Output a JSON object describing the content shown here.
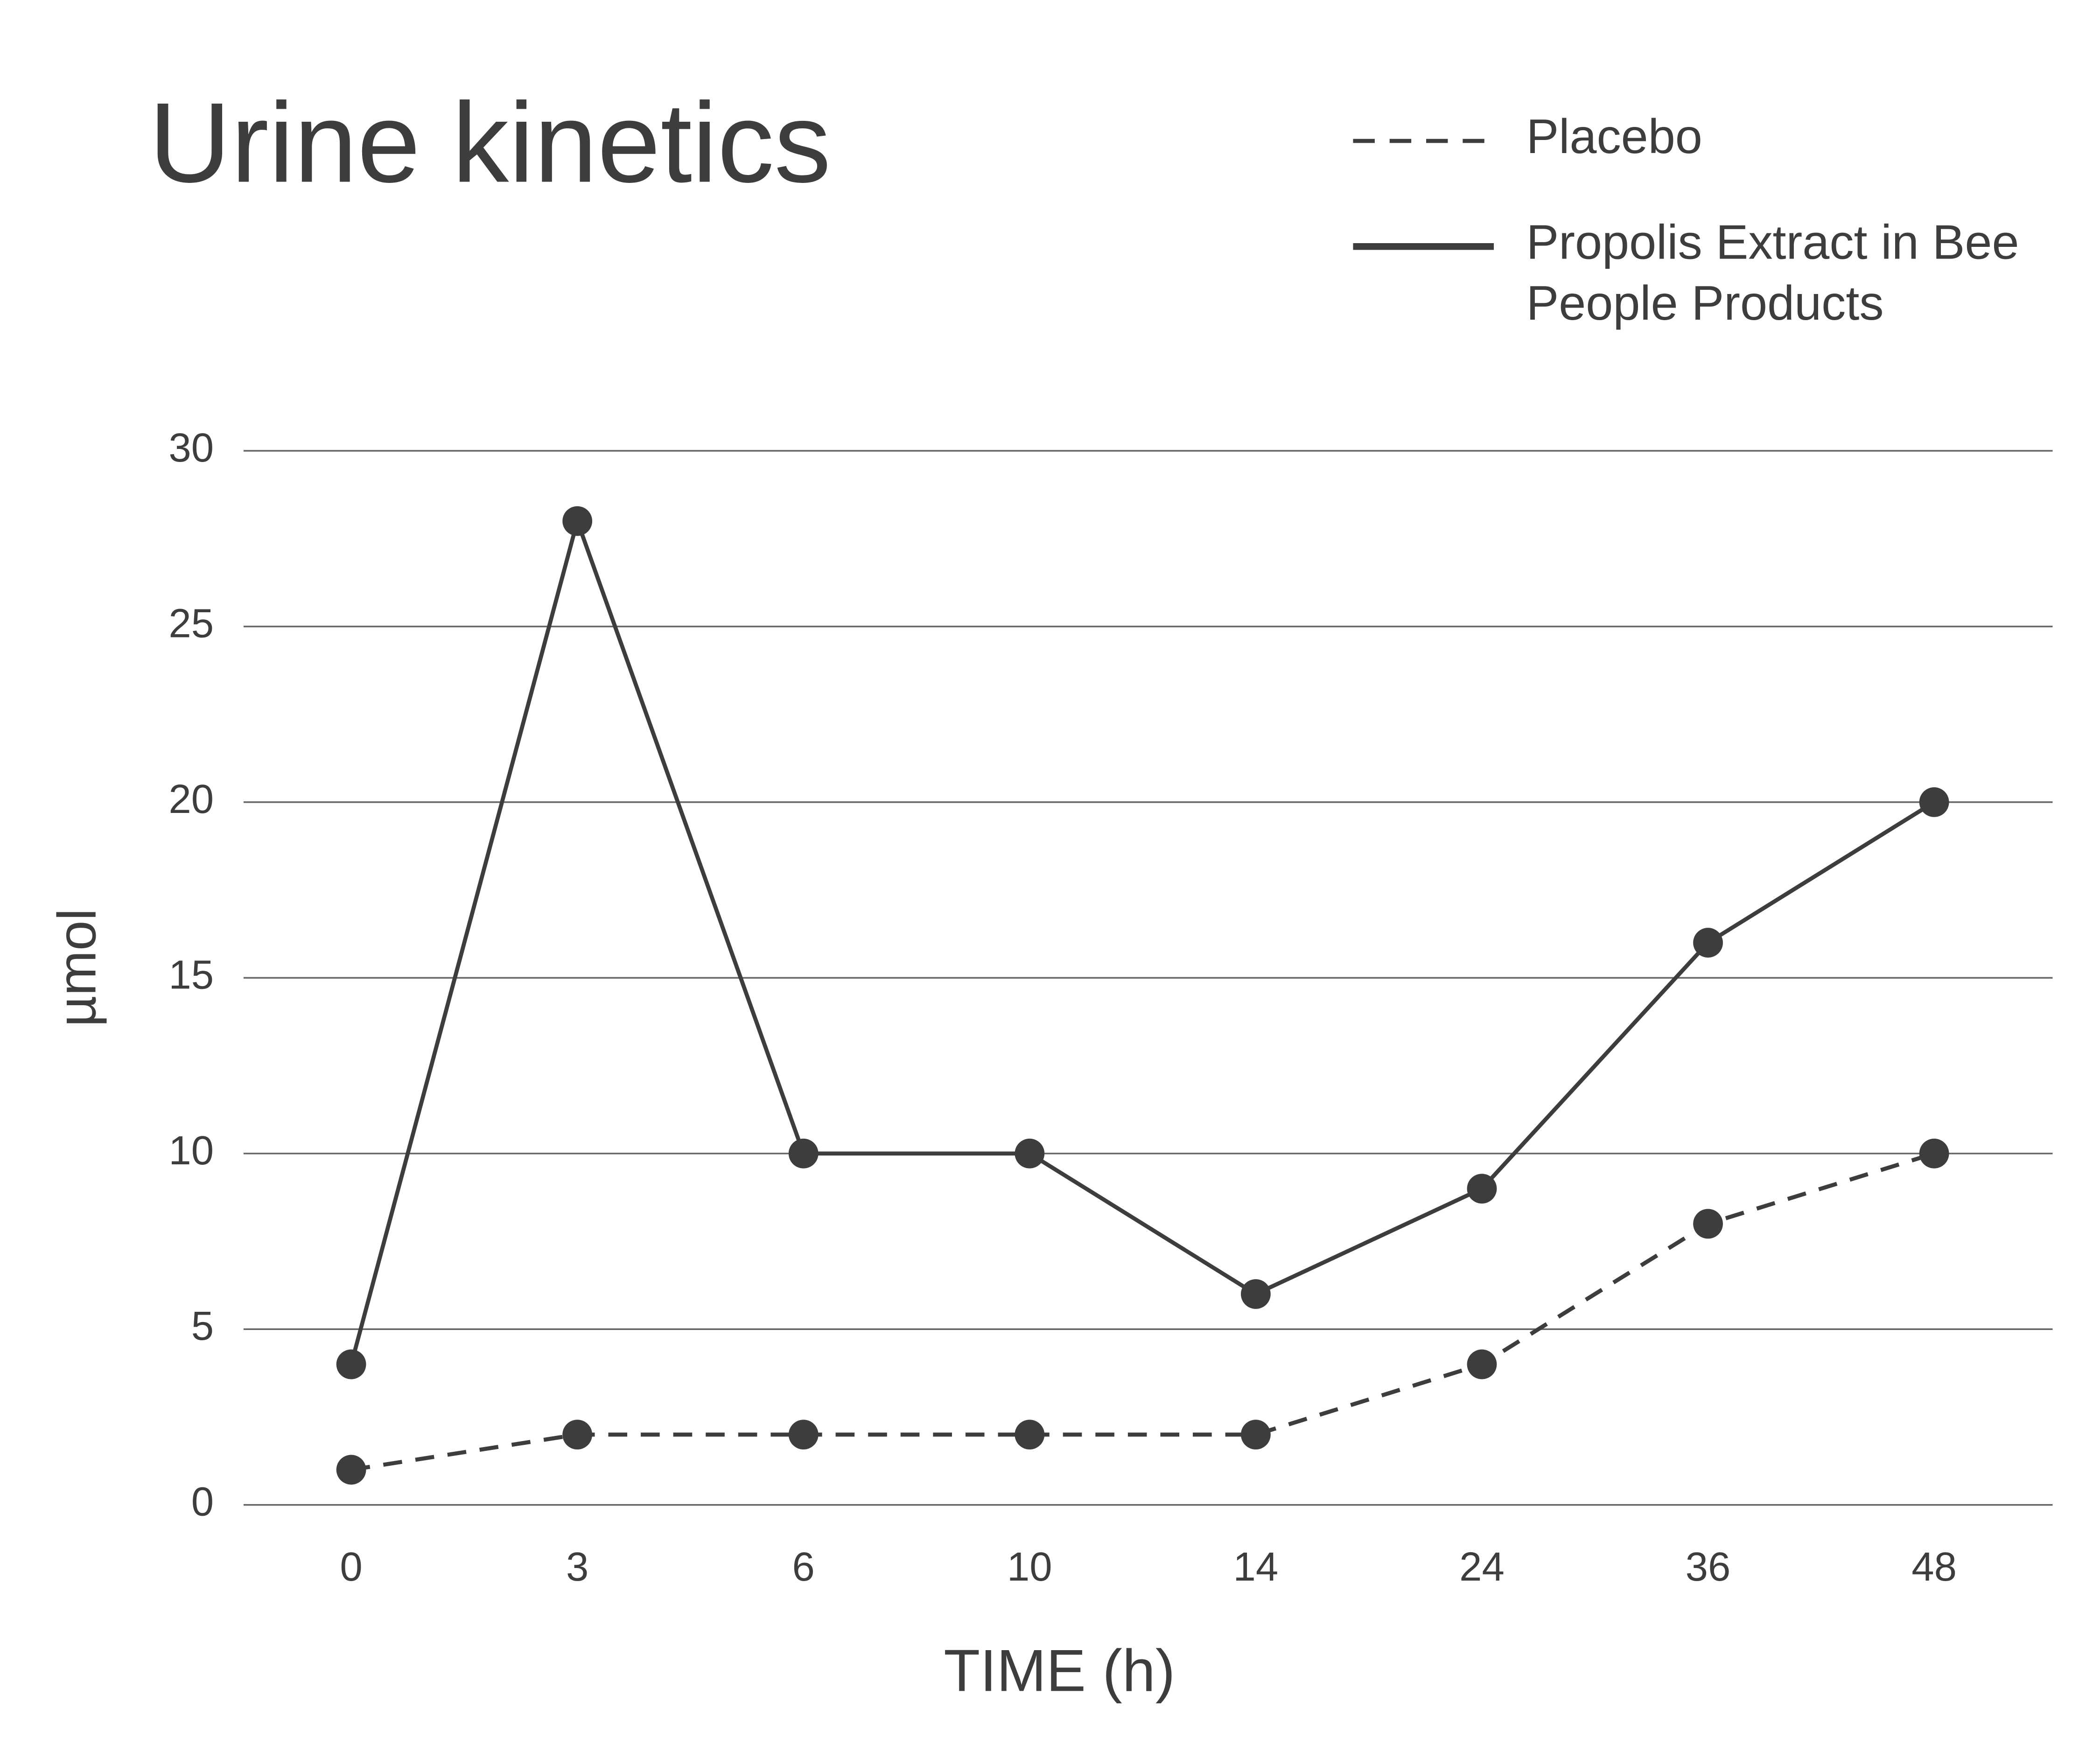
{
  "chart_data": {
    "type": "line",
    "title": "Urine kinetics",
    "x_label": "TIME (h)",
    "y_label": "µmol",
    "categories": [
      "0",
      "3",
      "6",
      "10",
      "14",
      "24",
      "36",
      "48"
    ],
    "series": [
      {
        "name": "Placebo",
        "color": "#3d3d3d",
        "dash": true,
        "values": [
          1,
          2,
          2,
          2,
          2,
          4,
          8,
          10
        ]
      },
      {
        "name": "Propolis Extract in Bee People Products",
        "color": "#3d3d3d",
        "dash": false,
        "values": [
          4,
          28,
          10,
          10,
          6,
          9,
          16,
          20
        ]
      }
    ],
    "ylim": [
      0,
      30
    ],
    "yticks": [
      0,
      5,
      10,
      15,
      20,
      25,
      30
    ],
    "grid": true,
    "legend": "top-right"
  }
}
